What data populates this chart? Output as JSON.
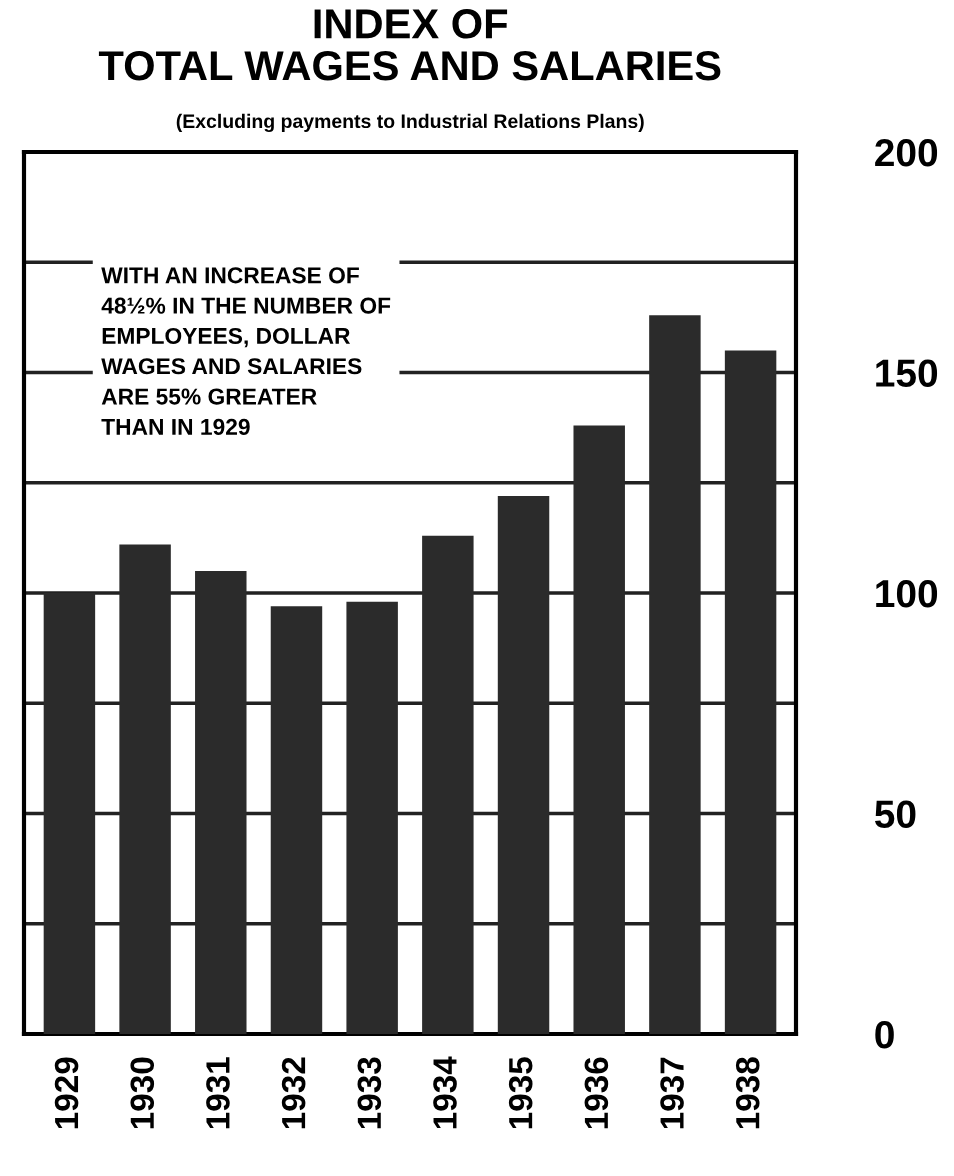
{
  "chart_data": {
    "type": "bar",
    "title": "INDEX OF\nTOTAL WAGES AND SALARIES",
    "subtitle": "(Excluding payments to Industrial Relations Plans)",
    "categories": [
      "1929",
      "1930",
      "1931",
      "1932",
      "1933",
      "1934",
      "1935",
      "1936",
      "1937",
      "1938"
    ],
    "values": [
      100,
      111,
      105,
      97,
      98,
      113,
      122,
      138,
      163,
      155
    ],
    "color": "#2b2b2b",
    "ylim": [
      0,
      200
    ],
    "yticks": [
      0,
      {
        "value": 25,
        "label": null
      },
      50,
      {
        "value": 75,
        "label": null
      },
      100,
      {
        "value": 125,
        "label": null
      },
      150,
      {
        "value": 175,
        "label": null
      },
      200
    ],
    "grid": "y",
    "annotations": [
      "WITH AN INCREASE OF\n48½% IN THE NUMBER OF\nEMPLOYEES, DOLLAR\nWAGES AND SALARIES\nARE 55% GREATER\nTHAN IN 1929"
    ]
  }
}
